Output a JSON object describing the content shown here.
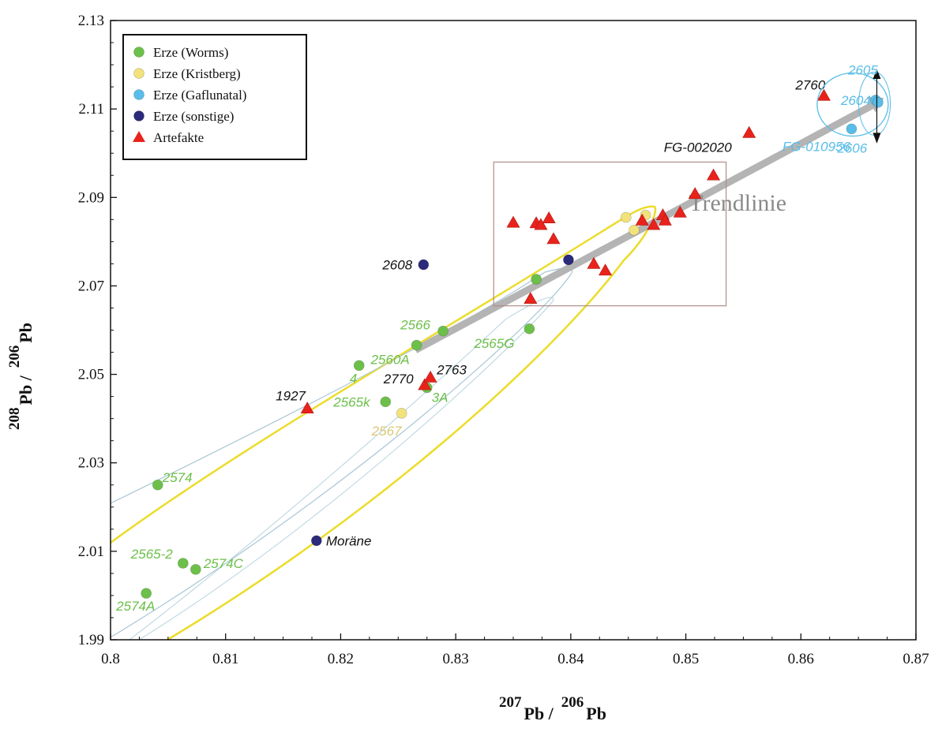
{
  "chart_data": {
    "type": "scatter",
    "xlim": [
      0.8,
      0.87
    ],
    "ylim": [
      1.99,
      2.13
    ],
    "x_ticks": [
      "0.8",
      "0.81",
      "0.82",
      "0.83",
      "0.84",
      "0.85",
      "0.86",
      "0.87"
    ],
    "y_ticks": [
      "1.99",
      "2.01",
      "2.03",
      "2.05",
      "2.07",
      "2.09",
      "2.11",
      "2.13"
    ],
    "xlabel": {
      "sup1": "207",
      "base1": "Pb /",
      "sup2": "206",
      "base2": "Pb"
    },
    "ylabel": {
      "sup1": "208",
      "base1": "Pb /",
      "sup2": "206",
      "base2": "Pb"
    },
    "grid": false,
    "legend_position": "top-left",
    "series": [
      {
        "name": "Erze (Worms)",
        "marker": "circle",
        "color": "#6cc04a",
        "label_color": "#6cc04a",
        "points": [
          {
            "x": 0.8031,
            "y": 2.0005,
            "label": "2574A"
          },
          {
            "x": 0.8041,
            "y": 2.025,
            "label": "2574"
          },
          {
            "x": 0.8063,
            "y": 2.0073,
            "label": "2565-2"
          },
          {
            "x": 0.8074,
            "y": 2.0059,
            "label": "2574C"
          },
          {
            "x": 0.8216,
            "y": 2.052,
            "label": "4"
          },
          {
            "x": 0.8239,
            "y": 2.0438,
            "label": "2565k"
          },
          {
            "x": 0.8266,
            "y": 2.0566,
            "label": "2560A"
          },
          {
            "x": 0.8275,
            "y": 2.047,
            "label": "3A"
          },
          {
            "x": 0.8289,
            "y": 2.0598,
            "label": "2566"
          },
          {
            "x": 0.8364,
            "y": 2.0603,
            "label": "2565G"
          },
          {
            "x": 0.837,
            "y": 2.0715,
            "label": ""
          }
        ]
      },
      {
        "name": "Erze (Kristberg)",
        "marker": "circle",
        "color": "#f2e27a",
        "label_color": "#d9c878",
        "points": [
          {
            "x": 0.8253,
            "y": 2.0412,
            "label": "2567"
          },
          {
            "x": 0.8448,
            "y": 2.0855,
            "label": ""
          },
          {
            "x": 0.8455,
            "y": 2.0826,
            "label": ""
          },
          {
            "x": 0.8465,
            "y": 2.086,
            "label": ""
          }
        ]
      },
      {
        "name": "Erze (Gaflunatal)",
        "marker": "circle",
        "color": "#58bde8",
        "label_color": "#58bde8",
        "points": [
          {
            "x": 0.8644,
            "y": 2.1055,
            "label": "2606"
          },
          {
            "x": 0.8665,
            "y": 2.112,
            "label": "2604"
          },
          {
            "x": 0.8667,
            "y": 2.1115,
            "label": ""
          }
        ]
      },
      {
        "name": "Erze (sonstige)",
        "marker": "circle",
        "color": "#2c2a7a",
        "label_color": "#111111",
        "points": [
          {
            "x": 0.8179,
            "y": 2.0124,
            "label": "Moräne"
          },
          {
            "x": 0.8272,
            "y": 2.0748,
            "label": "2608"
          },
          {
            "x": 0.8398,
            "y": 2.0759,
            "label": ""
          }
        ]
      },
      {
        "name": "Artefakte",
        "marker": "triangle",
        "color": "#e8231c",
        "label_color": "#111111",
        "points": [
          {
            "x": 0.8171,
            "y": 2.0423,
            "label": "1927"
          },
          {
            "x": 0.8273,
            "y": 2.0476,
            "label": "2770"
          },
          {
            "x": 0.8278,
            "y": 2.0493,
            "label": "2763"
          },
          {
            "x": 0.835,
            "y": 2.0843,
            "label": ""
          },
          {
            "x": 0.8365,
            "y": 2.0671,
            "label": ""
          },
          {
            "x": 0.837,
            "y": 2.0842,
            "label": ""
          },
          {
            "x": 0.8374,
            "y": 2.0838,
            "label": ""
          },
          {
            "x": 0.8381,
            "y": 2.0853,
            "label": ""
          },
          {
            "x": 0.8385,
            "y": 2.0806,
            "label": ""
          },
          {
            "x": 0.842,
            "y": 2.075,
            "label": ""
          },
          {
            "x": 0.843,
            "y": 2.0735,
            "label": ""
          },
          {
            "x": 0.8462,
            "y": 2.0848,
            "label": ""
          },
          {
            "x": 0.8472,
            "y": 2.0838,
            "label": ""
          },
          {
            "x": 0.848,
            "y": 2.086,
            "label": ""
          },
          {
            "x": 0.8482,
            "y": 2.0848,
            "label": ""
          },
          {
            "x": 0.8495,
            "y": 2.0866,
            "label": ""
          },
          {
            "x": 0.8508,
            "y": 2.0908,
            "label": ""
          },
          {
            "x": 0.8524,
            "y": 2.095,
            "label": ""
          },
          {
            "x": 0.8555,
            "y": 2.1046,
            "label": "FG-002020"
          },
          {
            "x": 0.862,
            "y": 2.113,
            "label": "2760"
          }
        ]
      }
    ],
    "extra_labels": [
      {
        "text": "2605",
        "color": "#58bde8"
      },
      {
        "text": "FG-010956",
        "color": "#58bde8"
      }
    ],
    "trendline": {
      "label": "Trendlinie",
      "color": "#b4b4b4",
      "from": {
        "x": 0.8265,
        "y": 2.0555
      },
      "to": {
        "x": 0.8672,
        "y": 2.1125
      }
    },
    "highlight_box": {
      "x_range": [
        0.8333,
        0.8535
      ],
      "y_range": [
        2.0655,
        2.098
      ]
    }
  }
}
